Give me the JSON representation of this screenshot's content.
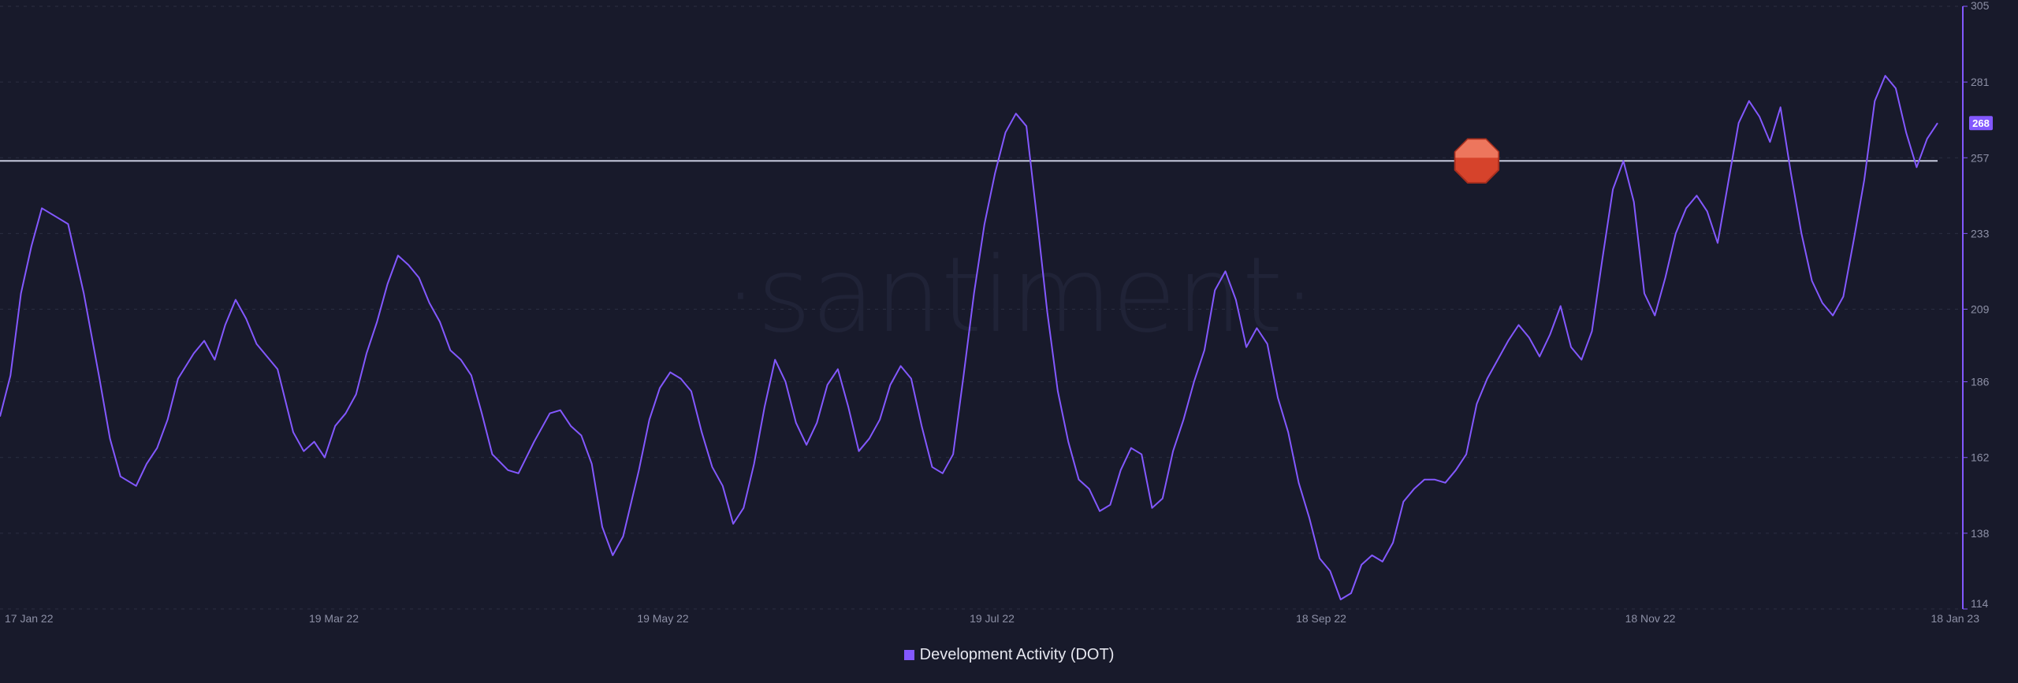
{
  "chart_data": {
    "type": "line",
    "title": "",
    "xlabel": "",
    "ylabel": "",
    "watermark": "·santiment·",
    "x_ticks": [
      "17 Jan 22",
      "19 Mar 22",
      "19 May 22",
      "19 Jul 22",
      "18 Sep 22",
      "18 Nov 22",
      "18 Jan 23"
    ],
    "y_ticks": [
      114,
      138,
      162,
      186,
      209,
      233,
      257,
      281,
      305
    ],
    "ylim": [
      114,
      305
    ],
    "xlim": [
      "2022-01-16",
      "2023-01-21"
    ],
    "grid": true,
    "last_value_badge": "268",
    "reference_line": 256,
    "marker_icon": "stop-sign-icon",
    "marker_date": "2022-10-25",
    "legend_position": "bottom-center",
    "colors": {
      "background": "#181a2b",
      "series": "#8358ff",
      "reference_line": "#c6c9de",
      "grid": "#2b2e42",
      "tick_text": "#8d90a6",
      "marker": "#d6432b",
      "badge": "#8358ff"
    },
    "series": [
      {
        "name": "Development Activity (DOT)",
        "points": [
          [
            "2022-01-16",
            175
          ],
          [
            "2022-01-18",
            188
          ],
          [
            "2022-01-20",
            214
          ],
          [
            "2022-01-22",
            229
          ],
          [
            "2022-01-24",
            241
          ],
          [
            "2022-01-26",
            239
          ],
          [
            "2022-01-29",
            236
          ],
          [
            "2022-02-01",
            214
          ],
          [
            "2022-02-04",
            187
          ],
          [
            "2022-02-06",
            168
          ],
          [
            "2022-02-08",
            156
          ],
          [
            "2022-02-11",
            153
          ],
          [
            "2022-02-13",
            160
          ],
          [
            "2022-02-15",
            165
          ],
          [
            "2022-02-17",
            174
          ],
          [
            "2022-02-19",
            187
          ],
          [
            "2022-02-22",
            195
          ],
          [
            "2022-02-24",
            199
          ],
          [
            "2022-02-26",
            193
          ],
          [
            "2022-02-28",
            204
          ],
          [
            "2022-03-02",
            212
          ],
          [
            "2022-03-04",
            206
          ],
          [
            "2022-03-06",
            198
          ],
          [
            "2022-03-08",
            194
          ],
          [
            "2022-03-10",
            190
          ],
          [
            "2022-03-13",
            170
          ],
          [
            "2022-03-15",
            164
          ],
          [
            "2022-03-17",
            167
          ],
          [
            "2022-03-19",
            162
          ],
          [
            "2022-03-21",
            172
          ],
          [
            "2022-03-23",
            176
          ],
          [
            "2022-03-25",
            182
          ],
          [
            "2022-03-27",
            195
          ],
          [
            "2022-03-29",
            205
          ],
          [
            "2022-03-31",
            217
          ],
          [
            "2022-04-02",
            226
          ],
          [
            "2022-04-04",
            223
          ],
          [
            "2022-04-06",
            219
          ],
          [
            "2022-04-08",
            211
          ],
          [
            "2022-04-10",
            205
          ],
          [
            "2022-04-12",
            196
          ],
          [
            "2022-04-14",
            193
          ],
          [
            "2022-04-16",
            188
          ],
          [
            "2022-04-18",
            176
          ],
          [
            "2022-04-20",
            163
          ],
          [
            "2022-04-23",
            158
          ],
          [
            "2022-04-25",
            157
          ],
          [
            "2022-04-28",
            167
          ],
          [
            "2022-05-01",
            176
          ],
          [
            "2022-05-03",
            177
          ],
          [
            "2022-05-05",
            172
          ],
          [
            "2022-05-07",
            169
          ],
          [
            "2022-05-09",
            160
          ],
          [
            "2022-05-11",
            140
          ],
          [
            "2022-05-13",
            131
          ],
          [
            "2022-05-15",
            137
          ],
          [
            "2022-05-18",
            158
          ],
          [
            "2022-05-20",
            174
          ],
          [
            "2022-05-22",
            184
          ],
          [
            "2022-05-24",
            189
          ],
          [
            "2022-05-26",
            187
          ],
          [
            "2022-05-28",
            183
          ],
          [
            "2022-05-30",
            170
          ],
          [
            "2022-06-01",
            159
          ],
          [
            "2022-06-03",
            153
          ],
          [
            "2022-06-05",
            141
          ],
          [
            "2022-06-07",
            146
          ],
          [
            "2022-06-09",
            160
          ],
          [
            "2022-06-11",
            178
          ],
          [
            "2022-06-13",
            193
          ],
          [
            "2022-06-15",
            186
          ],
          [
            "2022-06-17",
            173
          ],
          [
            "2022-06-19",
            166
          ],
          [
            "2022-06-21",
            173
          ],
          [
            "2022-06-23",
            185
          ],
          [
            "2022-06-25",
            190
          ],
          [
            "2022-06-27",
            178
          ],
          [
            "2022-06-29",
            164
          ],
          [
            "2022-07-01",
            168
          ],
          [
            "2022-07-03",
            174
          ],
          [
            "2022-07-05",
            185
          ],
          [
            "2022-07-07",
            191
          ],
          [
            "2022-07-09",
            187
          ],
          [
            "2022-07-11",
            172
          ],
          [
            "2022-07-13",
            159
          ],
          [
            "2022-07-15",
            157
          ],
          [
            "2022-07-17",
            163
          ],
          [
            "2022-07-19",
            188
          ],
          [
            "2022-07-21",
            214
          ],
          [
            "2022-07-23",
            236
          ],
          [
            "2022-07-25",
            252
          ],
          [
            "2022-07-27",
            265
          ],
          [
            "2022-07-29",
            271
          ],
          [
            "2022-07-31",
            267
          ],
          [
            "2022-08-02",
            238
          ],
          [
            "2022-08-04",
            208
          ],
          [
            "2022-08-06",
            183
          ],
          [
            "2022-08-08",
            167
          ],
          [
            "2022-08-10",
            155
          ],
          [
            "2022-08-12",
            152
          ],
          [
            "2022-08-14",
            145
          ],
          [
            "2022-08-16",
            147
          ],
          [
            "2022-08-18",
            158
          ],
          [
            "2022-08-20",
            165
          ],
          [
            "2022-08-22",
            163
          ],
          [
            "2022-08-24",
            146
          ],
          [
            "2022-08-26",
            149
          ],
          [
            "2022-08-28",
            164
          ],
          [
            "2022-08-30",
            174
          ],
          [
            "2022-09-01",
            186
          ],
          [
            "2022-09-03",
            196
          ],
          [
            "2022-09-05",
            215
          ],
          [
            "2022-09-07",
            221
          ],
          [
            "2022-09-09",
            212
          ],
          [
            "2022-09-11",
            197
          ],
          [
            "2022-09-13",
            203
          ],
          [
            "2022-09-15",
            198
          ],
          [
            "2022-09-17",
            181
          ],
          [
            "2022-09-19",
            170
          ],
          [
            "2022-09-21",
            154
          ],
          [
            "2022-09-23",
            143
          ],
          [
            "2022-09-25",
            130
          ],
          [
            "2022-09-27",
            126
          ],
          [
            "2022-09-29",
            117
          ],
          [
            "2022-10-01",
            119
          ],
          [
            "2022-10-03",
            128
          ],
          [
            "2022-10-05",
            131
          ],
          [
            "2022-10-07",
            129
          ],
          [
            "2022-10-09",
            135
          ],
          [
            "2022-10-11",
            148
          ],
          [
            "2022-10-13",
            152
          ],
          [
            "2022-10-15",
            155
          ],
          [
            "2022-10-17",
            155
          ],
          [
            "2022-10-19",
            154
          ],
          [
            "2022-10-21",
            158
          ],
          [
            "2022-10-23",
            163
          ],
          [
            "2022-10-25",
            179
          ],
          [
            "2022-10-27",
            187
          ],
          [
            "2022-10-29",
            193
          ],
          [
            "2022-10-31",
            199
          ],
          [
            "2022-11-02",
            204
          ],
          [
            "2022-11-04",
            200
          ],
          [
            "2022-11-06",
            194
          ],
          [
            "2022-11-08",
            201
          ],
          [
            "2022-11-10",
            210
          ],
          [
            "2022-11-12",
            197
          ],
          [
            "2022-11-14",
            193
          ],
          [
            "2022-11-16",
            202
          ],
          [
            "2022-11-18",
            225
          ],
          [
            "2022-11-20",
            247
          ],
          [
            "2022-11-22",
            256
          ],
          [
            "2022-11-24",
            243
          ],
          [
            "2022-11-26",
            214
          ],
          [
            "2022-11-28",
            207
          ],
          [
            "2022-11-30",
            219
          ],
          [
            "2022-12-02",
            233
          ],
          [
            "2022-12-04",
            241
          ],
          [
            "2022-12-06",
            245
          ],
          [
            "2022-12-08",
            240
          ],
          [
            "2022-12-10",
            230
          ],
          [
            "2022-12-12",
            249
          ],
          [
            "2022-12-14",
            268
          ],
          [
            "2022-12-16",
            275
          ],
          [
            "2022-12-18",
            270
          ],
          [
            "2022-12-20",
            262
          ],
          [
            "2022-12-22",
            273
          ],
          [
            "2022-12-24",
            252
          ],
          [
            "2022-12-26",
            233
          ],
          [
            "2022-12-28",
            218
          ],
          [
            "2022-12-30",
            211
          ],
          [
            "2023-01-01",
            207
          ],
          [
            "2023-01-03",
            213
          ],
          [
            "2023-01-05",
            231
          ],
          [
            "2023-01-07",
            250
          ],
          [
            "2023-01-09",
            275
          ],
          [
            "2023-01-11",
            283
          ],
          [
            "2023-01-13",
            279
          ],
          [
            "2023-01-15",
            265
          ],
          [
            "2023-01-17",
            254
          ],
          [
            "2023-01-19",
            263
          ],
          [
            "2023-01-21",
            268
          ]
        ]
      }
    ]
  }
}
